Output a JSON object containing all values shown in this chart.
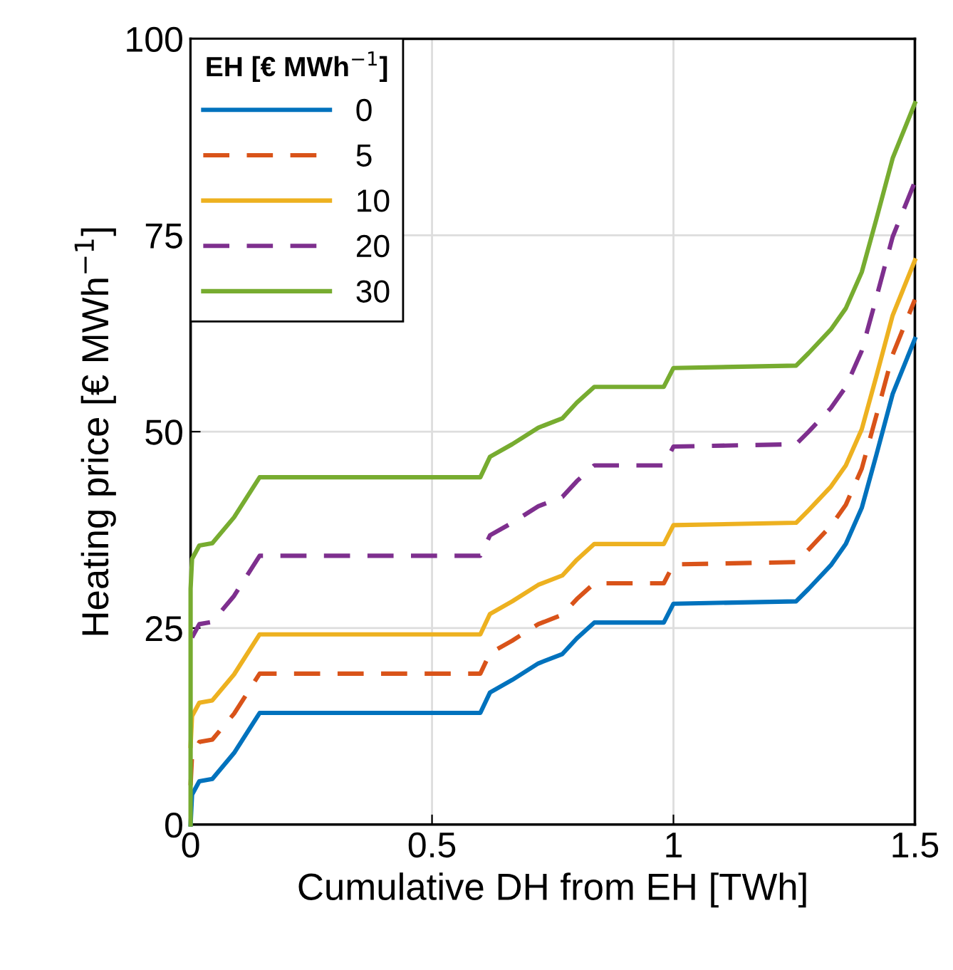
{
  "chart_data": {
    "type": "line",
    "xlabel": "Cumulative DH from EH [TWh]",
    "ylabel": "Heating price [€ MWh$^{−1}$]",
    "legend_title": "EH [€ MWh$^{−1}$]",
    "x": [
      0,
      0,
      0.003,
      0.018,
      0.045,
      0.09,
      0.143,
      0.6,
      0.62,
      0.666,
      0.72,
      0.77,
      0.8,
      0.836,
      0.98,
      1.0,
      1.254,
      1.28,
      1.326,
      1.357,
      1.39,
      1.42,
      1.454,
      1.5
    ],
    "series": [
      {
        "name": "0",
        "color": "#0072bd",
        "line_style": "solid",
        "values": [
          0,
          0,
          3.8,
          5.5,
          5.8,
          9.1,
          14.2,
          14.2,
          16.8,
          18.4,
          20.5,
          21.7,
          23.7,
          25.7,
          25.7,
          28.1,
          28.4,
          30,
          33,
          35.7,
          40.3,
          47,
          54.8,
          61.8
        ]
      },
      {
        "name": "5",
        "color": "#d95319",
        "line_style": "dashed",
        "values": [
          null,
          5,
          8.8,
          10.5,
          10.8,
          14.1,
          19.2,
          19.2,
          21.8,
          23.4,
          25.5,
          26.7,
          28.7,
          30.7,
          30.7,
          33.1,
          33.4,
          35,
          38,
          40.7,
          45.3,
          52,
          59.8,
          66.8
        ]
      },
      {
        "name": "10",
        "color": "#edb120",
        "line_style": "solid",
        "values": [
          null,
          10,
          13.8,
          15.5,
          15.8,
          19.1,
          24.2,
          24.2,
          26.8,
          28.4,
          30.5,
          31.7,
          33.7,
          35.7,
          35.7,
          38.1,
          38.4,
          40,
          43,
          45.7,
          50.3,
          57,
          64.8,
          71.8
        ]
      },
      {
        "name": "20",
        "color": "#7e2f8e",
        "line_style": "dashed",
        "values": [
          null,
          null,
          23.8,
          25.5,
          25.8,
          29.1,
          34.2,
          34.2,
          36.8,
          38.4,
          40.5,
          41.7,
          43.7,
          45.7,
          45.7,
          48.1,
          48.4,
          50,
          53,
          55.7,
          60.3,
          67,
          74.8,
          81.8
        ]
      },
      {
        "name": "30",
        "color": "#77ac30",
        "line_style": "solid",
        "values": [
          0,
          30,
          33.8,
          35.5,
          35.8,
          39.1,
          44.2,
          44.2,
          46.8,
          48.4,
          50.5,
          51.7,
          53.7,
          55.7,
          55.7,
          58.1,
          58.4,
          60,
          63,
          65.7,
          70.3,
          77,
          84.8,
          91.8
        ]
      }
    ],
    "xlim": [
      0,
      1.5
    ],
    "xticks": [
      0,
      0.5,
      1,
      1.5
    ],
    "ylim": [
      0,
      100
    ],
    "yticks": [
      0,
      25,
      50,
      75,
      100
    ],
    "grid": true,
    "legend": "top left"
  }
}
